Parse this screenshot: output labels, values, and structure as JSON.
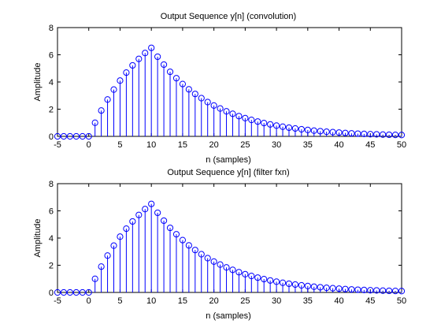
{
  "colors": {
    "stem": "#0000ff",
    "axis": "#000000",
    "background": "#ffffff"
  },
  "chart_data": [
    {
      "type": "stem",
      "title": "Output Sequence y[n] (convolution)",
      "xlabel": "n (samples)",
      "ylabel": "Amplitude",
      "xlim": [
        -5,
        50
      ],
      "ylim": [
        0,
        8
      ],
      "xticks": [
        "-5",
        "0",
        "5",
        "10",
        "15",
        "20",
        "25",
        "30",
        "35",
        "40",
        "45",
        "50"
      ],
      "yticks": [
        "0",
        "2",
        "4",
        "6",
        "8"
      ],
      "x": [
        -5,
        -4,
        -3,
        -2,
        -1,
        0,
        1,
        2,
        3,
        4,
        5,
        6,
        7,
        8,
        9,
        10,
        11,
        12,
        13,
        14,
        15,
        16,
        17,
        18,
        19,
        20,
        21,
        22,
        23,
        24,
        25,
        26,
        27,
        28,
        29,
        30,
        31,
        32,
        33,
        34,
        35,
        36,
        37,
        38,
        39,
        40,
        41,
        42,
        43,
        44,
        45,
        46,
        47,
        48,
        49,
        50
      ],
      "values": [
        0,
        0,
        0,
        0,
        0,
        0,
        1.0,
        1.9,
        2.71,
        3.44,
        4.1,
        4.69,
        5.22,
        5.7,
        6.13,
        6.51,
        5.86,
        5.28,
        4.75,
        4.28,
        3.85,
        3.46,
        3.12,
        2.81,
        2.52,
        2.27,
        2.05,
        1.84,
        1.66,
        1.49,
        1.34,
        1.21,
        1.09,
        0.98,
        0.88,
        0.79,
        0.71,
        0.64,
        0.58,
        0.52,
        0.47,
        0.42,
        0.38,
        0.34,
        0.31,
        0.28,
        0.25,
        0.22,
        0.2,
        0.18,
        0.16,
        0.15,
        0.13,
        0.12,
        0.11,
        0.1
      ]
    },
    {
      "type": "stem",
      "title": "Output Sequence y[n] (filter fxn)",
      "xlabel": "n (samples)",
      "ylabel": "Amplitude",
      "xlim": [
        -5,
        50
      ],
      "ylim": [
        0,
        8
      ],
      "xticks": [
        "-5",
        "0",
        "5",
        "10",
        "15",
        "20",
        "25",
        "30",
        "35",
        "40",
        "45",
        "50"
      ],
      "yticks": [
        "0",
        "2",
        "4",
        "6",
        "8"
      ],
      "x": [
        -5,
        -4,
        -3,
        -2,
        -1,
        0,
        1,
        2,
        3,
        4,
        5,
        6,
        7,
        8,
        9,
        10,
        11,
        12,
        13,
        14,
        15,
        16,
        17,
        18,
        19,
        20,
        21,
        22,
        23,
        24,
        25,
        26,
        27,
        28,
        29,
        30,
        31,
        32,
        33,
        34,
        35,
        36,
        37,
        38,
        39,
        40,
        41,
        42,
        43,
        44,
        45,
        46,
        47,
        48,
        49,
        50
      ],
      "values": [
        0,
        0,
        0,
        0,
        0,
        0,
        1.0,
        1.9,
        2.71,
        3.44,
        4.1,
        4.69,
        5.22,
        5.7,
        6.13,
        6.51,
        5.86,
        5.28,
        4.75,
        4.28,
        3.85,
        3.46,
        3.12,
        2.81,
        2.52,
        2.27,
        2.05,
        1.84,
        1.66,
        1.49,
        1.34,
        1.21,
        1.09,
        0.98,
        0.88,
        0.79,
        0.71,
        0.64,
        0.58,
        0.52,
        0.47,
        0.42,
        0.38,
        0.34,
        0.31,
        0.28,
        0.25,
        0.22,
        0.2,
        0.18,
        0.16,
        0.15,
        0.13,
        0.12,
        0.11,
        0.1
      ]
    }
  ]
}
